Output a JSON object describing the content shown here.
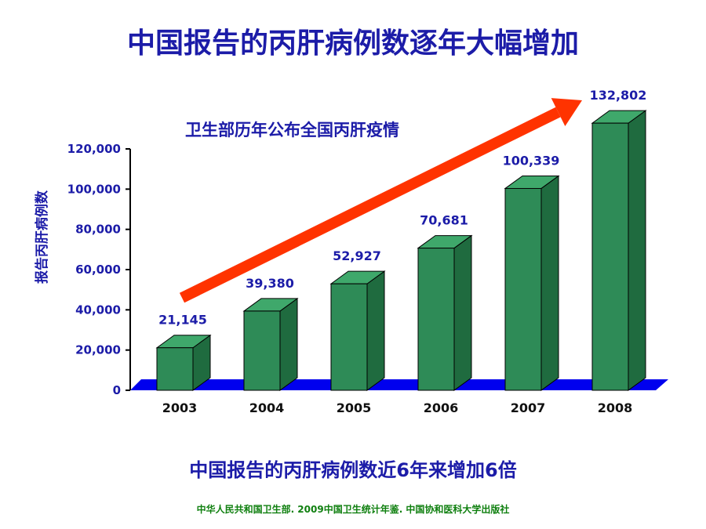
{
  "slide": {
    "title": "中国报告的丙肝病例数逐年大幅增加",
    "footnote": "中国报告的丙肝病例数近6年来增加6倍",
    "source": "中华人民共和国卫生部. 2009中国卫生统计年鉴. 中国协和医科大学出版社"
  },
  "chart_data": {
    "type": "bar",
    "style": "3d-column",
    "title": "",
    "subtitle": "卫生部历年公布全国丙肝疫情",
    "xlabel": "",
    "ylabel": "报告丙肝病例数",
    "categories": [
      "2003",
      "2004",
      "2005",
      "2006",
      "2007",
      "2008"
    ],
    "values": [
      21145,
      39380,
      52927,
      70681,
      100339,
      132802
    ],
    "data_labels": [
      "21,145",
      "39,380",
      "52,927",
      "70,681",
      "100,339",
      "132,802"
    ],
    "ylim": [
      0,
      120000
    ],
    "yticks": [
      0,
      20000,
      40000,
      60000,
      80000,
      100000,
      120000
    ],
    "ytick_labels": [
      "0",
      "20,000",
      "40,000",
      "60,000",
      "80,000",
      "100,000",
      "120,000"
    ],
    "grid": false,
    "legend": "none",
    "colors": {
      "bar_front": "#2e8b57",
      "bar_side": "#1f6b3f",
      "bar_top": "#3fa86b",
      "floor": "#0000ee",
      "trend_arrow": "#ff3300",
      "text": "#1c1ca8"
    }
  }
}
